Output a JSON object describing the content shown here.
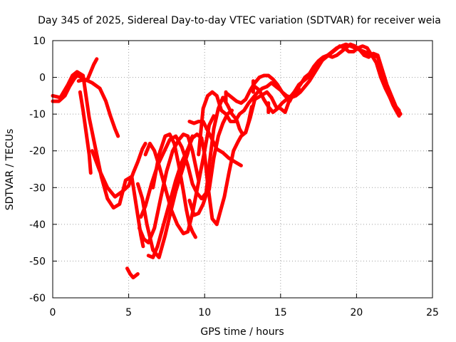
{
  "chart_data": {
    "type": "scatter",
    "title": "Day 345 of 2025, Sidereal Day-to-day VTEC variation (SDTVAR) for receiver weia",
    "xlabel": "GPS time / hours",
    "ylabel": "SDTVAR / TECUs",
    "xlim": [
      0,
      25
    ],
    "ylim": [
      -60,
      10
    ],
    "xticks": [
      0,
      5,
      10,
      15,
      20,
      25
    ],
    "yticks": [
      -60,
      -50,
      -40,
      -30,
      -20,
      -10,
      0,
      10
    ],
    "grid": true,
    "marker": "plus",
    "color": "#ff0000",
    "series": [
      {
        "x": [
          0,
          0.4,
          0.8,
          1.1,
          1.4,
          1.6,
          1.9,
          2.1,
          2.3,
          2.5,
          2.7,
          2.9
        ],
        "y": [
          -6.5,
          -6.5,
          -5,
          -2.5,
          -0.5,
          0.5,
          0,
          -1,
          -0.5,
          1.5,
          3.5,
          5
        ]
      },
      {
        "x": [
          0,
          0.5,
          1.0,
          1.3,
          1.6,
          2.0,
          2.4,
          2.8,
          3.2,
          3.6,
          4.0,
          4.4,
          4.8,
          5.2,
          5.5,
          5.8,
          5.95
        ],
        "y": [
          -5,
          -5.5,
          -2,
          0.5,
          1.5,
          0.5,
          -11,
          -19,
          -27,
          -33,
          -35.5,
          -34.5,
          -28,
          -27,
          -35,
          -43,
          -46
        ]
      },
      {
        "x": [
          1.8,
          2.0,
          2.2,
          2.4,
          2.5
        ],
        "y": [
          -4,
          -9,
          -15,
          -21,
          -26
        ]
      },
      {
        "x": [
          1.7,
          2.1,
          2.6,
          3.1,
          3.5,
          3.8,
          4.1,
          4.3
        ],
        "y": [
          -1,
          -0.5,
          -1.5,
          -3,
          -6.5,
          -10.5,
          -14,
          -16
        ]
      },
      {
        "x": [
          2.6,
          3.1,
          3.6,
          4.1,
          4.6,
          5.0,
          5.3,
          5.6,
          5.9,
          6.1
        ],
        "y": [
          -20,
          -25.5,
          -30,
          -32.5,
          -31,
          -29.5,
          -26,
          -23,
          -19.5,
          -18
        ]
      },
      {
        "x": [
          4.9,
          5.1,
          5.3,
          5.6
        ],
        "y": [
          -52,
          -53.5,
          -54.5,
          -53.5
        ]
      },
      {
        "x": [
          5.6,
          5.9,
          6.2,
          6.6,
          7.0,
          7.4,
          7.8,
          8.1,
          8.4,
          8.7,
          8.9,
          9.0,
          9.1,
          9.2
        ],
        "y": [
          -29,
          -33,
          -40,
          -47,
          -49,
          -43,
          -36,
          -31,
          -27,
          -23,
          -20.5,
          -18.5,
          -17,
          -16
        ]
      },
      {
        "x": [
          5.8,
          6.1,
          6.5,
          6.9,
          7.3,
          7.7,
          8.1,
          8.5,
          8.9,
          9.2,
          9.5,
          9.8,
          10.1,
          10.3,
          10.6,
          10.9,
          11.2,
          11.5,
          11.8,
          12.1,
          12.3,
          12.5,
          12.7,
          12.9,
          13.1
        ],
        "y": [
          -38,
          -35,
          -29,
          -24,
          -20.5,
          -17,
          -16,
          -19,
          -24,
          -29,
          -31.5,
          -33,
          -31.5,
          -24,
          -14,
          -8.5,
          -5.5,
          -7.5,
          -10,
          -11.5,
          -14,
          -15.5,
          -15,
          -12,
          -8
        ]
      },
      {
        "x": [
          5.7,
          6.0,
          6.3,
          6.7,
          7.1,
          7.5,
          7.9,
          8.3,
          8.6,
          8.9,
          9.2,
          9.4,
          9.6
        ],
        "y": [
          -41,
          -44,
          -45,
          -41,
          -33,
          -25.5,
          -20,
          -17,
          -15.5,
          -16,
          -20,
          -24,
          -28
        ]
      },
      {
        "x": [
          6.3,
          6.6,
          6.9,
          7.3,
          7.7,
          8.1,
          8.5,
          8.9,
          9.2,
          9.5,
          9.8,
          10.0,
          10.2,
          10.5,
          10.8,
          11.0,
          11.3,
          11.6,
          11.9,
          12.2,
          12.4,
          12.7,
          13.0,
          13.3,
          13.7,
          14.1,
          14.4,
          14.7,
          15.0,
          15.3,
          15.6,
          15.9,
          16.2
        ],
        "y": [
          -48.5,
          -49,
          -46,
          -40,
          -34,
          -28,
          -23,
          -19.5,
          -16.5,
          -15.5,
          -16.5,
          -21,
          -29,
          -38.5,
          -40,
          -37,
          -32.5,
          -26,
          -20,
          -17.5,
          -16,
          -15,
          -11,
          -6,
          -5,
          -4,
          -5.5,
          -8,
          -8.5,
          -9.5,
          -6,
          -4.5,
          -3
        ]
      },
      {
        "x": [
          6.6,
          7.0,
          7.4,
          7.7,
          8.0,
          8.3,
          8.6,
          8.8,
          9.0,
          9.2,
          9.4
        ],
        "y": [
          -30,
          -21,
          -16,
          -15.5,
          -18,
          -24,
          -31,
          -36,
          -40,
          -42,
          -43.5
        ]
      },
      {
        "x": [
          6.1,
          6.4,
          6.7,
          7.0,
          7.4,
          7.8,
          8.2,
          8.6,
          8.9,
          9.2,
          9.6,
          10.0,
          10.3,
          10.6
        ],
        "y": [
          -21,
          -18,
          -20,
          -24,
          -30,
          -36,
          -40,
          -42.5,
          -42,
          -37,
          -28.5,
          -20,
          -13,
          -10.5
        ]
      },
      {
        "x": [
          9.0,
          9.3,
          9.6,
          9.9,
          10.2,
          10.5,
          10.8,
          11.2,
          11.6,
          12.0,
          12.4
        ],
        "y": [
          -12,
          -12.5,
          -12,
          -12,
          -14.5,
          -17,
          -19.5,
          -20.5,
          -22,
          -23,
          -24
        ]
      },
      {
        "x": [
          9.0,
          9.3,
          9.6,
          9.9,
          10.1,
          10.3,
          10.6,
          10.9,
          11.2,
          11.5,
          11.8
        ],
        "y": [
          -33.5,
          -37.5,
          -37,
          -34.5,
          -32,
          -30.5,
          -22,
          -16,
          -12.5,
          -10,
          -9
        ]
      },
      {
        "x": [
          9.6,
          9.9,
          10.2,
          10.5,
          10.8,
          11.1,
          11.4,
          11.7,
          12.0,
          12.3,
          12.6,
          12.9,
          13.2,
          13.5,
          13.8,
          14.1,
          14.4,
          14.7,
          15.0,
          15.3,
          15.6,
          15.9,
          16.2,
          16.5,
          16.8,
          17.1,
          17.4,
          17.7,
          18.0,
          18.3,
          18.6,
          18.9,
          19.2,
          19.5,
          19.8,
          20.1,
          20.4,
          20.7,
          21.0,
          21.3,
          21.6,
          21.9,
          22.2,
          22.5,
          22.8
        ],
        "y": [
          -21,
          -8.5,
          -5,
          -4,
          -5,
          -9,
          -10,
          -12,
          -12,
          -10,
          -9,
          -7,
          -5.5,
          -4,
          -3,
          -2.5,
          -1.5,
          -2.5,
          -3.5,
          -5,
          -6.5,
          -4,
          -2,
          -1,
          0,
          1.5,
          3,
          4.5,
          5.5,
          6.5,
          7.5,
          8.5,
          8,
          7,
          7,
          8,
          8.5,
          8,
          6,
          4,
          0,
          -3,
          -5.5,
          -7.5,
          -9
        ]
      },
      {
        "x": [
          11.5,
          11.8,
          12.1,
          12.4,
          12.7,
          13.0,
          13.3,
          13.6,
          13.9,
          14.2,
          14.5,
          14.8,
          15.1,
          15.4,
          15.7,
          16.0,
          16.3,
          16.6,
          16.9,
          17.2,
          17.5,
          17.8,
          18.1,
          18.4,
          18.7,
          19.0,
          19.3,
          19.6,
          19.9,
          20.2,
          20.5,
          20.8,
          21.1,
          21.4,
          21.6,
          21.8,
          22.0,
          22.2,
          22.4,
          22.6,
          22.8
        ],
        "y": [
          -4.5,
          -5.5,
          -6.5,
          -7,
          -6,
          -3.5,
          -1.5,
          0,
          0.5,
          0.5,
          -0.5,
          -2,
          -4,
          -5,
          -5.5,
          -5,
          -4,
          -2.5,
          -1,
          1,
          3,
          5,
          6,
          7,
          8,
          8.5,
          9,
          8.5,
          8,
          7.5,
          7,
          6.5,
          6,
          5.5,
          3,
          0,
          -3,
          -5.5,
          -7.5,
          -9,
          -10.5
        ]
      },
      {
        "x": [
          13.3,
          13.6,
          13.9,
          14.2,
          14.5,
          14.8,
          15.1,
          15.4,
          15.7,
          16.0,
          16.3,
          16.6,
          16.9,
          17.2,
          17.5,
          17.8,
          18.1,
          18.4,
          18.7,
          19.0,
          19.3,
          19.6,
          19.9,
          20.2,
          20.5,
          20.8,
          21.1,
          21.4,
          21.7,
          22.0,
          22.3,
          22.6,
          22.9
        ],
        "y": [
          -2.5,
          -3.5,
          -6,
          -8,
          -9.5,
          -8.5,
          -7,
          -6,
          -5,
          -3.5,
          -2,
          0,
          1,
          3,
          4.5,
          5.5,
          6,
          5.5,
          6,
          7,
          8,
          9,
          8.5,
          7.5,
          6,
          5.5,
          6.5,
          6,
          2,
          -2,
          -5,
          -8,
          -10
        ]
      }
    ],
    "stubs": [
      {
        "x": 11.4,
        "y1": -4,
        "y2": -6.5
      },
      {
        "x": 13.2,
        "y1": -1,
        "y2": -4
      },
      {
        "x": 14.2,
        "y1": -7,
        "y2": -9.5
      }
    ]
  }
}
